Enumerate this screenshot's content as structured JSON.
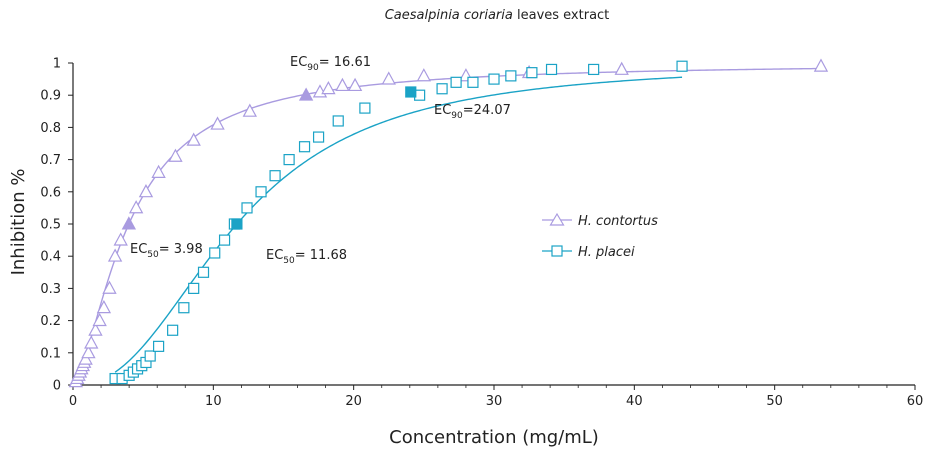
{
  "chart_data": {
    "type": "scatter",
    "title": {
      "italic": "Caesalpinia coriaria",
      "normal": " leaves extract"
    },
    "xlabel": "Concentration (mg/mL)",
    "ylabel": "Inhibition %",
    "xlim": [
      0,
      60
    ],
    "ylim": [
      0,
      1
    ],
    "x_ticks": [
      0,
      10,
      20,
      30,
      40,
      50,
      60
    ],
    "y_ticks": [
      0,
      0.1,
      0.2,
      0.3,
      0.4,
      0.5,
      0.6,
      0.7,
      0.8,
      0.9,
      1
    ],
    "y_tick_labels": [
      "0",
      "0.1",
      "0.2",
      "0.3",
      "0.4",
      "0.5",
      "0.6",
      "0.7",
      "0.8",
      "0.9",
      "1"
    ],
    "grid": false,
    "legend_position": "center-right",
    "series": [
      {
        "name": "H. contortus",
        "marker": "triangle",
        "color": "#a99be0",
        "curve_type": "hill",
        "ec50": 3.98,
        "hill": 1.56,
        "max": 1.0,
        "x": [
          0.2,
          0.3,
          0.4,
          0.5,
          0.6,
          0.7,
          0.8,
          0.9,
          1.1,
          1.3,
          1.6,
          1.9,
          2.2,
          2.6,
          3.0,
          3.4,
          4.5,
          5.2,
          6.1,
          7.3,
          8.6,
          10.3,
          12.6,
          17.6,
          18.2,
          19.2,
          20.1,
          22.5,
          25.0,
          28.0,
          32.5,
          39.1,
          53.3
        ],
        "y": [
          0.01,
          0.02,
          0.03,
          0.04,
          0.05,
          0.06,
          0.07,
          0.08,
          0.1,
          0.13,
          0.17,
          0.2,
          0.24,
          0.3,
          0.4,
          0.45,
          0.55,
          0.6,
          0.66,
          0.71,
          0.76,
          0.81,
          0.85,
          0.91,
          0.92,
          0.93,
          0.93,
          0.95,
          0.96,
          0.96,
          0.97,
          0.98,
          0.99
        ]
      },
      {
        "name": "H. placei",
        "marker": "square",
        "color": "#1ba3c6",
        "curve_type": "hill",
        "ec50": 11.68,
        "hill": 2.34,
        "max": 1.0,
        "x": [
          3.0,
          3.5,
          4.0,
          4.3,
          4.6,
          4.9,
          5.2,
          5.5,
          6.1,
          7.1,
          7.9,
          8.6,
          9.3,
          10.1,
          10.8,
          11.5,
          12.4,
          13.4,
          14.4,
          15.4,
          16.5,
          17.5,
          18.9,
          20.8,
          24.7,
          26.3,
          27.3,
          28.5,
          30.0,
          31.2,
          32.7,
          34.1,
          37.1,
          43.4
        ],
        "y": [
          0.02,
          0.02,
          0.03,
          0.04,
          0.05,
          0.06,
          0.07,
          0.09,
          0.12,
          0.17,
          0.24,
          0.3,
          0.35,
          0.41,
          0.45,
          0.5,
          0.55,
          0.6,
          0.65,
          0.7,
          0.74,
          0.77,
          0.82,
          0.86,
          0.9,
          0.92,
          0.94,
          0.94,
          0.95,
          0.96,
          0.97,
          0.98,
          0.98,
          0.99
        ]
      }
    ],
    "highlight_points": [
      {
        "series": "H. contortus",
        "x": 3.98,
        "y": 0.5,
        "marker": "triangle-filled"
      },
      {
        "series": "H. contortus",
        "x": 16.61,
        "y": 0.9,
        "marker": "triangle-filled"
      },
      {
        "series": "H. placei",
        "x": 11.68,
        "y": 0.5,
        "marker": "square-filled"
      },
      {
        "series": "H. placei",
        "x": 24.07,
        "y": 0.91,
        "marker": "square-filled"
      }
    ],
    "annotations": [
      {
        "prefix": "EC",
        "sub": "50",
        "value": "= 3.98",
        "placement": "below-left of H. contortus EC50 point"
      },
      {
        "prefix": "EC",
        "sub": "90",
        "value": "= 16.61",
        "placement": "above H. contortus EC90 point"
      },
      {
        "prefix": "EC",
        "sub": "50",
        "value": "= 11.68",
        "placement": "right of H. placei EC50 point"
      },
      {
        "prefix": "EC",
        "sub": "90",
        "value": "=24.07",
        "placement": "below-right of H. placei EC90 point"
      }
    ]
  }
}
